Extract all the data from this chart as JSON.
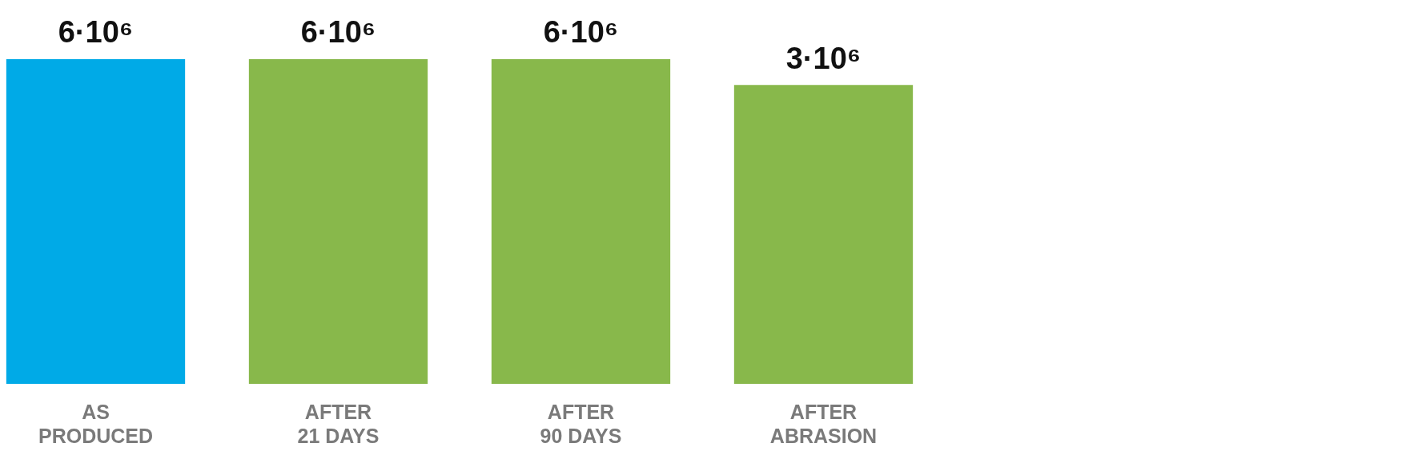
{
  "chart_data": {
    "type": "bar",
    "categories": [
      "AS PRODUCED",
      "AFTER 21 DAYS",
      "AFTER 90 DAYS",
      "AFTER ABRASION"
    ],
    "values": [
      6000000,
      6000000,
      6000000,
      3000000
    ],
    "value_labels": [
      "6·10⁶",
      "6·10⁶",
      "6·10⁶",
      "3·10⁶"
    ],
    "colors": [
      "#00aae7",
      "#88b84b",
      "#88b84b",
      "#88b84b"
    ],
    "log": "y",
    "ylim": [
      1000,
      6000000
    ],
    "tick_labels": "x",
    "grid": false,
    "legend": false
  }
}
